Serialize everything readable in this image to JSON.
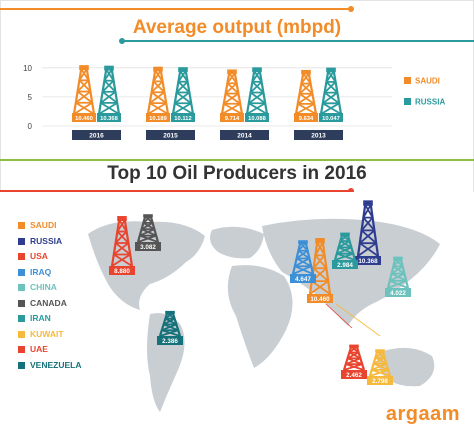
{
  "chart_data": [
    {
      "type": "bar",
      "title": "Average output (mbpd)",
      "categories": [
        "2016",
        "2015",
        "2014",
        "2013"
      ],
      "yticks": [
        0,
        5,
        10
      ],
      "ylim": [
        0,
        11
      ],
      "grid": true,
      "legend_position": "right",
      "series": [
        {
          "name": "SAUDI",
          "color": "#f28c28",
          "values": [
            10.46,
            10.189,
            9.714,
            9.634
          ],
          "labels": [
            "10.460",
            "10.189",
            "9.714",
            "9.634"
          ]
        },
        {
          "name": "RUSSIA",
          "color": "#2a9a9c",
          "values": [
            10.368,
            10.112,
            10.088,
            10.047
          ],
          "labels": [
            "10.368",
            "10.112",
            "10.088",
            "10.047"
          ]
        }
      ]
    },
    {
      "type": "bar",
      "title": "Top 10 Oil Producers in 2016",
      "legend_position": "left",
      "categories": [
        "SAUDI",
        "RUSSIA",
        "USA",
        "IRAQ",
        "CHINA",
        "CANADA",
        "IRAN",
        "KUWAIT",
        "UAE",
        "VENEZUELA"
      ],
      "colors": [
        "#f28c28",
        "#2f3d8f",
        "#e8442e",
        "#3d8fd6",
        "#6cc2bd",
        "#555555",
        "#2a9a9c",
        "#f6b93b",
        "#e8442e",
        "#16727a"
      ],
      "values": [
        10.46,
        10.368,
        8.88,
        4.647,
        4.022,
        3.082,
        2.984,
        2.798,
        2.462,
        2.386
      ],
      "labels": [
        "10.460",
        "10.368",
        "8.880",
        "4.647",
        "4.022",
        "3.082",
        "2.984",
        "2.798",
        "2.462",
        "2.386"
      ]
    }
  ],
  "brand": "argaam"
}
